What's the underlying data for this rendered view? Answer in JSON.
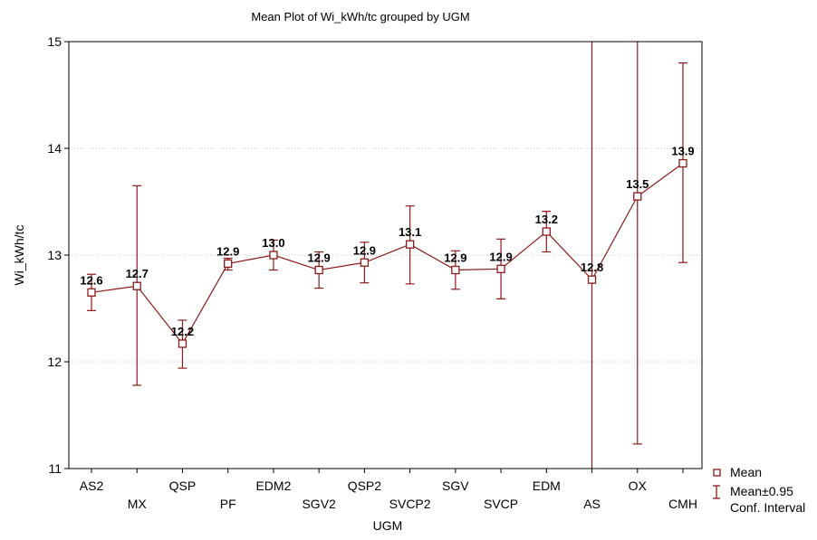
{
  "chart_data": {
    "type": "line",
    "title": "Mean Plot of Wi_kWh/tc grouped by  UGM",
    "xlabel": "UGM",
    "ylabel": "Wi_kWh/tc",
    "ylim": [
      11,
      15
    ],
    "yticks": [
      "11",
      "12",
      "13",
      "14",
      "15"
    ],
    "grid": true,
    "legend_position": "bottom-right",
    "categories": [
      "AS2",
      "MX",
      "QSP",
      "PF",
      "EDM2",
      "SGV2",
      "QSP2",
      "SVCP2",
      "SGV",
      "SVCP",
      "EDM",
      "AS",
      "OX",
      "CMH"
    ],
    "series": [
      {
        "name": "Mean",
        "values": [
          12.65,
          12.71,
          12.17,
          12.92,
          13.0,
          12.86,
          12.93,
          13.1,
          12.86,
          12.87,
          13.22,
          12.77,
          13.55,
          13.86
        ],
        "data_labels": [
          "12.6",
          "12.7",
          "12.2",
          "12.9",
          "13.0",
          "12.9",
          "12.9",
          "13.1",
          "12.9",
          "12.9",
          "13.2",
          "12.8",
          "13.5",
          "13.9"
        ]
      },
      {
        "name": "Mean±0.95 Conf. Interval",
        "lower": [
          12.48,
          11.78,
          11.94,
          12.86,
          12.86,
          12.69,
          12.74,
          12.73,
          12.68,
          12.59,
          13.03,
          10.5,
          11.23,
          12.93
        ],
        "upper": [
          12.82,
          13.65,
          12.39,
          12.97,
          13.14,
          13.03,
          13.12,
          13.46,
          13.04,
          13.15,
          13.41,
          15.5,
          15.5,
          14.8
        ]
      }
    ],
    "colors": {
      "series": "#8b1a1a",
      "grid": "#c8c8c8",
      "frame": "#000000"
    }
  }
}
